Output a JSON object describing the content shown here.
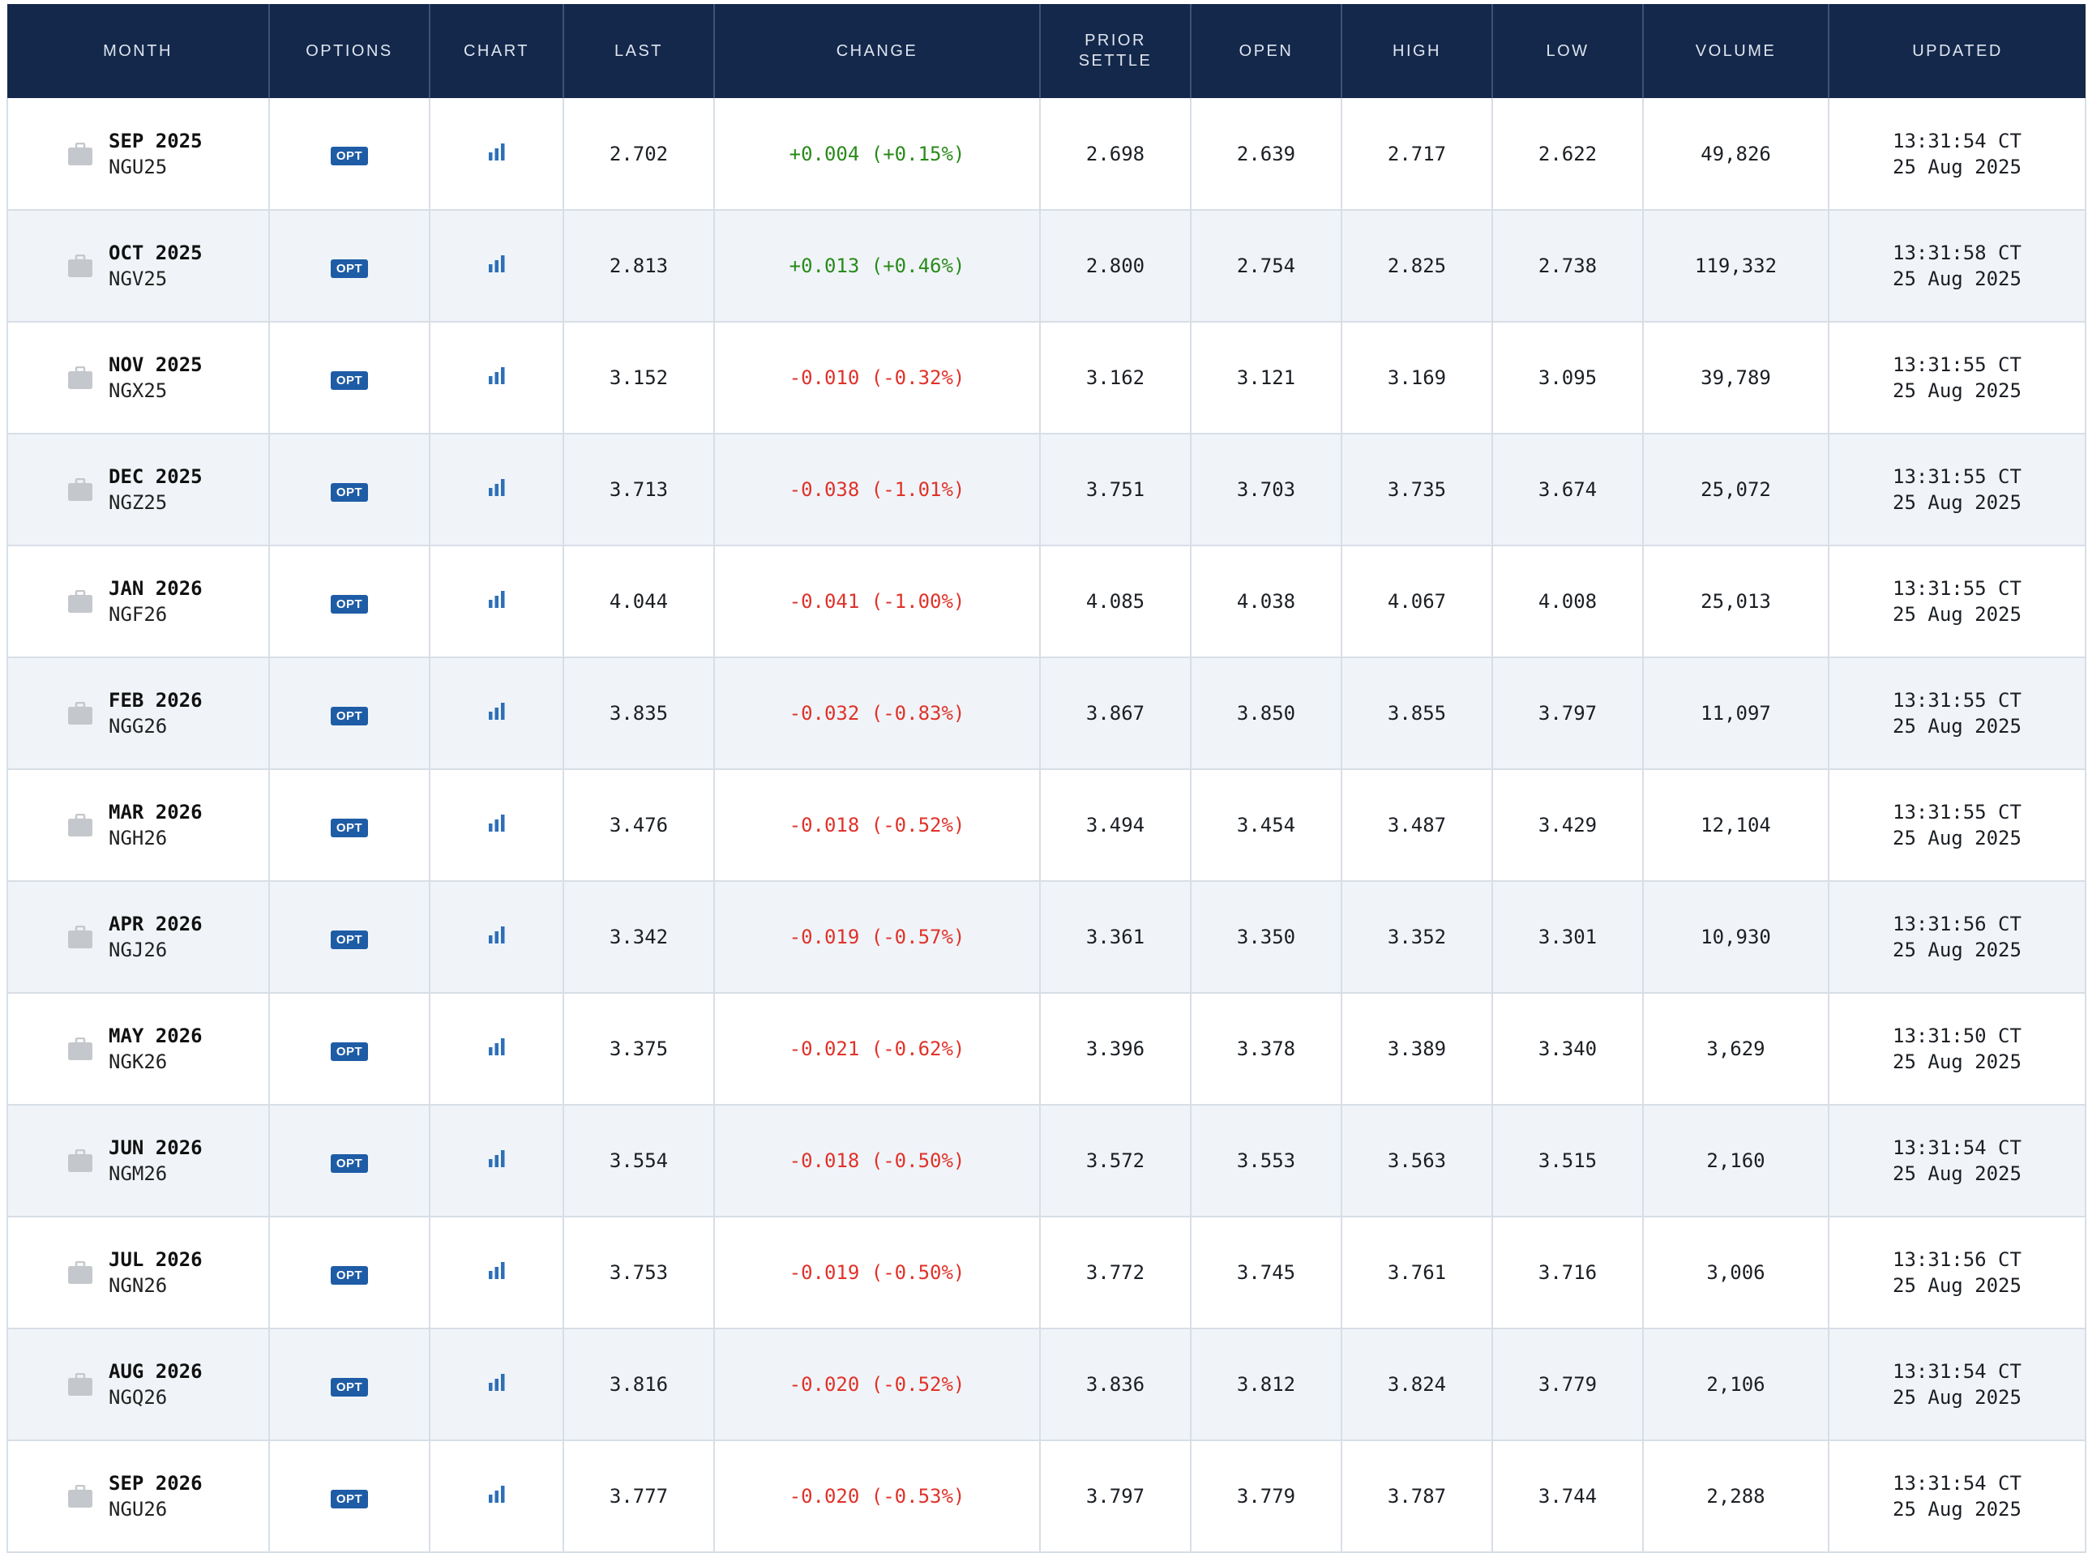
{
  "colors": {
    "header_bg": "#14284b",
    "positive": "#2a8a1a",
    "negative": "#e0322a",
    "badge": "#1e5ca6",
    "row_alt": "#f0f4f8"
  },
  "headers": {
    "month": "MONTH",
    "options": "OPTIONS",
    "chart": "CHART",
    "last": "LAST",
    "change": "CHANGE",
    "prior_1": "PRIOR",
    "prior_2": "SETTLE",
    "open": "OPEN",
    "high": "HIGH",
    "low": "LOW",
    "volume": "VOLUME",
    "updated": "UPDATED"
  },
  "rows": [
    {
      "month": "SEP 2025",
      "code": "NGU25",
      "opt": "OPT",
      "last": "2.702",
      "change": "+0.004 (+0.15%)",
      "dir": "pos",
      "prior": "2.698",
      "open": "2.639",
      "high": "2.717",
      "low": "2.622",
      "volume": "49,826",
      "time": "13:31:54 CT",
      "date": "25 Aug 2025"
    },
    {
      "month": "OCT 2025",
      "code": "NGV25",
      "opt": "OPT",
      "last": "2.813",
      "change": "+0.013 (+0.46%)",
      "dir": "pos",
      "prior": "2.800",
      "open": "2.754",
      "high": "2.825",
      "low": "2.738",
      "volume": "119,332",
      "time": "13:31:58 CT",
      "date": "25 Aug 2025"
    },
    {
      "month": "NOV 2025",
      "code": "NGX25",
      "opt": "OPT",
      "last": "3.152",
      "change": "-0.010 (-0.32%)",
      "dir": "neg",
      "prior": "3.162",
      "open": "3.121",
      "high": "3.169",
      "low": "3.095",
      "volume": "39,789",
      "time": "13:31:55 CT",
      "date": "25 Aug 2025"
    },
    {
      "month": "DEC 2025",
      "code": "NGZ25",
      "opt": "OPT",
      "last": "3.713",
      "change": "-0.038 (-1.01%)",
      "dir": "neg",
      "prior": "3.751",
      "open": "3.703",
      "high": "3.735",
      "low": "3.674",
      "volume": "25,072",
      "time": "13:31:55 CT",
      "date": "25 Aug 2025"
    },
    {
      "month": "JAN 2026",
      "code": "NGF26",
      "opt": "OPT",
      "last": "4.044",
      "change": "-0.041 (-1.00%)",
      "dir": "neg",
      "prior": "4.085",
      "open": "4.038",
      "high": "4.067",
      "low": "4.008",
      "volume": "25,013",
      "time": "13:31:55 CT",
      "date": "25 Aug 2025"
    },
    {
      "month": "FEB 2026",
      "code": "NGG26",
      "opt": "OPT",
      "last": "3.835",
      "change": "-0.032 (-0.83%)",
      "dir": "neg",
      "prior": "3.867",
      "open": "3.850",
      "high": "3.855",
      "low": "3.797",
      "volume": "11,097",
      "time": "13:31:55 CT",
      "date": "25 Aug 2025"
    },
    {
      "month": "MAR 2026",
      "code": "NGH26",
      "opt": "OPT",
      "last": "3.476",
      "change": "-0.018 (-0.52%)",
      "dir": "neg",
      "prior": "3.494",
      "open": "3.454",
      "high": "3.487",
      "low": "3.429",
      "volume": "12,104",
      "time": "13:31:55 CT",
      "date": "25 Aug 2025"
    },
    {
      "month": "APR 2026",
      "code": "NGJ26",
      "opt": "OPT",
      "last": "3.342",
      "change": "-0.019 (-0.57%)",
      "dir": "neg",
      "prior": "3.361",
      "open": "3.350",
      "high": "3.352",
      "low": "3.301",
      "volume": "10,930",
      "time": "13:31:56 CT",
      "date": "25 Aug 2025"
    },
    {
      "month": "MAY 2026",
      "code": "NGK26",
      "opt": "OPT",
      "last": "3.375",
      "change": "-0.021 (-0.62%)",
      "dir": "neg",
      "prior": "3.396",
      "open": "3.378",
      "high": "3.389",
      "low": "3.340",
      "volume": "3,629",
      "time": "13:31:50 CT",
      "date": "25 Aug 2025"
    },
    {
      "month": "JUN 2026",
      "code": "NGM26",
      "opt": "OPT",
      "last": "3.554",
      "change": "-0.018 (-0.50%)",
      "dir": "neg",
      "prior": "3.572",
      "open": "3.553",
      "high": "3.563",
      "low": "3.515",
      "volume": "2,160",
      "time": "13:31:54 CT",
      "date": "25 Aug 2025"
    },
    {
      "month": "JUL 2026",
      "code": "NGN26",
      "opt": "OPT",
      "last": "3.753",
      "change": "-0.019 (-0.50%)",
      "dir": "neg",
      "prior": "3.772",
      "open": "3.745",
      "high": "3.761",
      "low": "3.716",
      "volume": "3,006",
      "time": "13:31:56 CT",
      "date": "25 Aug 2025"
    },
    {
      "month": "AUG 2026",
      "code": "NGQ26",
      "opt": "OPT",
      "last": "3.816",
      "change": "-0.020 (-0.52%)",
      "dir": "neg",
      "prior": "3.836",
      "open": "3.812",
      "high": "3.824",
      "low": "3.779",
      "volume": "2,106",
      "time": "13:31:54 CT",
      "date": "25 Aug 2025"
    },
    {
      "month": "SEP 2026",
      "code": "NGU26",
      "opt": "OPT",
      "last": "3.777",
      "change": "-0.020 (-0.53%)",
      "dir": "neg",
      "prior": "3.797",
      "open": "3.779",
      "high": "3.787",
      "low": "3.744",
      "volume": "2,288",
      "time": "13:31:54 CT",
      "date": "25 Aug 2025"
    }
  ]
}
